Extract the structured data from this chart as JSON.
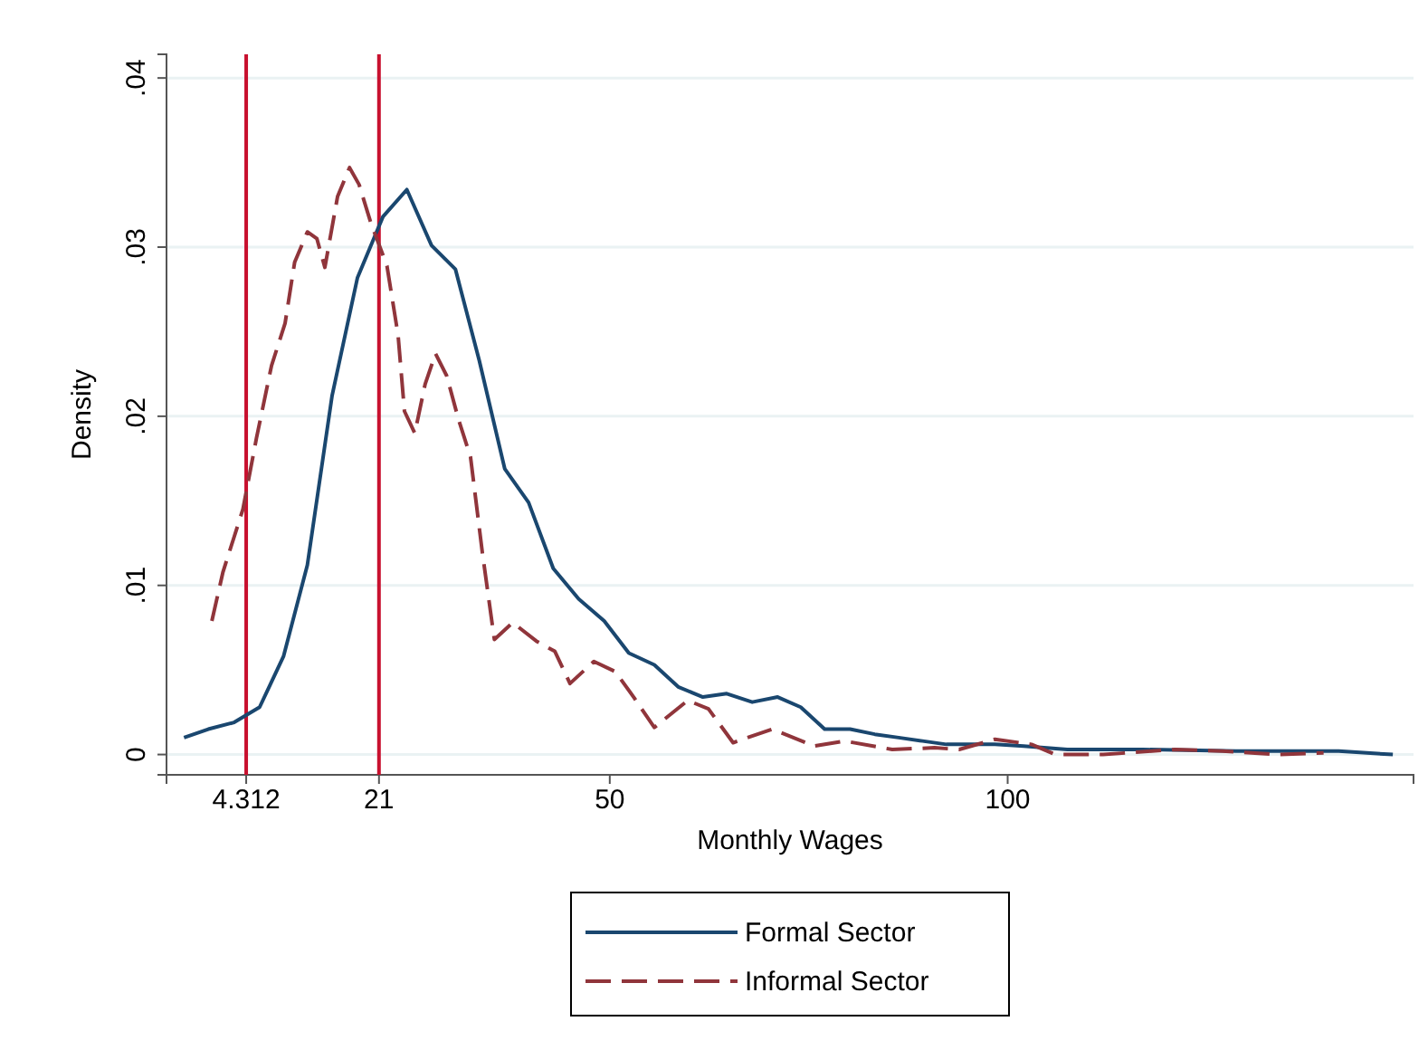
{
  "chart_data": {
    "type": "line",
    "xlabel": "Monthly Wages",
    "ylabel": "Density",
    "xlim": [
      -5.7,
      151
    ],
    "ylim": [
      -0.0012,
      0.0414
    ],
    "xticks": [
      4.312,
      21,
      50,
      100
    ],
    "yticks": [
      0,
      {
        "value": 0.01,
        "label": ".01"
      },
      {
        "value": 0.02,
        "label": ".02"
      },
      {
        "value": 0.03,
        "label": ".03"
      },
      {
        "value": 0.04,
        "label": ".04"
      }
    ],
    "grid": "y",
    "legend": "bottom",
    "marker": "none",
    "ref_lines": [
      {
        "axis": "x",
        "value": 4.312,
        "color": "#c8102e"
      },
      {
        "axis": "x",
        "value": 21,
        "color": "#c8102e"
      }
    ],
    "series": [
      {
        "name": "Formal Sector",
        "color": "#1a476f",
        "line_style": "solid",
        "x": [
          -3.5,
          -0.45,
          2.8,
          6,
          9,
          12,
          15.1,
          18.3,
          21.5,
          24.5,
          27.6,
          30.6,
          33.6,
          36.8,
          39.8,
          42.9,
          46.1,
          49.3,
          52.4,
          55.6,
          58.6,
          61.7,
          64.7,
          67.9,
          71.1,
          74,
          77,
          80.2,
          83.3,
          86.3,
          89.3,
          92.3,
          98.4,
          102,
          107.5,
          117,
          128.7,
          141.6,
          148.4
        ],
        "values": [
          0.001,
          0.0015,
          0.0019,
          0.0028,
          0.0058,
          0.0112,
          0.0212,
          0.0282,
          0.0318,
          0.0334,
          0.0301,
          0.0287,
          0.0233,
          0.0169,
          0.0149,
          0.011,
          0.0092,
          0.0079,
          0.006,
          0.0053,
          0.004,
          0.0034,
          0.0036,
          0.0031,
          0.0034,
          0.0028,
          0.0015,
          0.0015,
          0.0012,
          0.001,
          0.0008,
          0.0006,
          0.0006,
          0.0005,
          0.0003,
          0.0003,
          0.0002,
          0.0002,
          0
        ]
      },
      {
        "name": "Informal Sector",
        "color": "#90353b",
        "line_style": "dashed",
        "x": [
          0,
          1.4,
          3.9,
          5.6,
          7.5,
          9.2,
          10.4,
          12,
          13.2,
          14.2,
          15.8,
          17.3,
          18.5,
          20,
          22,
          23.4,
          24.2,
          25.5,
          26.8,
          28.1,
          29.5,
          31,
          32.5,
          34,
          35.5,
          37.8,
          40.8,
          43.1,
          45,
          48,
          50.7,
          53,
          55.6,
          59.8,
          62.4,
          65.5,
          70.4,
          75.7,
          79.5,
          85.5,
          90.8,
          93.9,
          98.4,
          103,
          106,
          112,
          121,
          127,
          134,
          139.7
        ],
        "values": [
          0.0079,
          0.0108,
          0.0145,
          0.0187,
          0.023,
          0.0255,
          0.0291,
          0.0309,
          0.0305,
          0.0288,
          0.033,
          0.0347,
          0.0337,
          0.0314,
          0.0289,
          0.0248,
          0.0203,
          0.019,
          0.0219,
          0.0237,
          0.0224,
          0.0198,
          0.0176,
          0.0119,
          0.0068,
          0.0078,
          0.0067,
          0.0061,
          0.0042,
          0.0055,
          0.0049,
          0.0034,
          0.0016,
          0.0032,
          0.0027,
          0.0007,
          0.0015,
          0.0005,
          0.0008,
          0.0003,
          0.0004,
          0.0003,
          0.0009,
          0.0006,
          0,
          0,
          0.0003,
          0.0002,
          0,
          0.0001
        ]
      }
    ]
  }
}
